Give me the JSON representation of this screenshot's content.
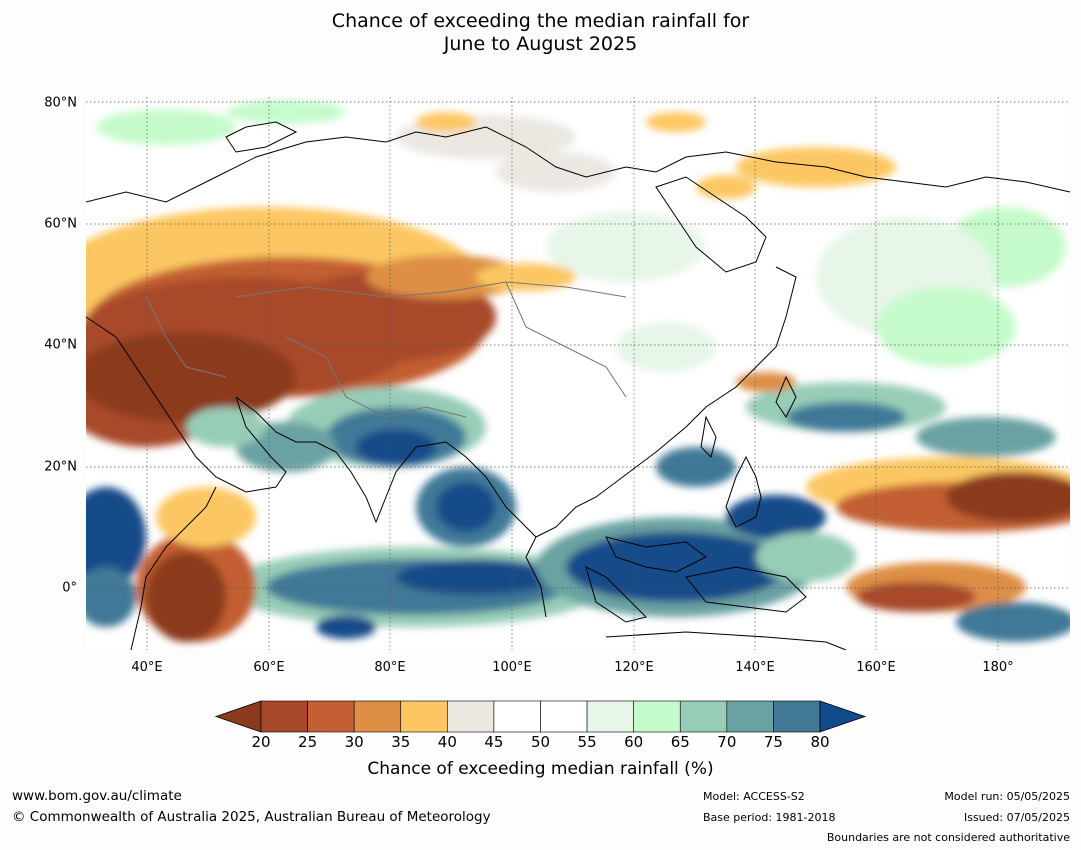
{
  "title": {
    "line1": "Chance of exceeding the median rainfall for",
    "line2": "June to August 2025"
  },
  "map": {
    "lat_ticks": [
      "80°N",
      "60°N",
      "40°N",
      "20°N",
      "0°"
    ],
    "lon_ticks": [
      "40°E",
      "60°E",
      "80°E",
      "100°E",
      "120°E",
      "140°E",
      "160°E",
      "180°"
    ]
  },
  "colorbar": {
    "ticks": [
      "20",
      "25",
      "30",
      "35",
      "40",
      "45",
      "50",
      "55",
      "60",
      "65",
      "70",
      "75",
      "80"
    ],
    "colors": [
      "#8b3a1e",
      "#a8482a",
      "#c35f32",
      "#de8f45",
      "#fcc762",
      "#ebe8e2",
      "#ffffff",
      "#ffffff",
      "#e7f6e8",
      "#c5fbcb",
      "#97cdb7",
      "#6aa2a3",
      "#417997",
      "#124b89"
    ],
    "label": "Chance of exceeding median rainfall (%)"
  },
  "footer": {
    "url": "www.bom.gov.au/climate",
    "copyright": "© Commonwealth of Australia 2025, Australian Bureau of Meteorology",
    "model": "Model: ACCESS-S2",
    "base_period": "Base period: 1981-2018",
    "model_run": "Model run: 05/05/2025",
    "issued": "Issued: 07/05/2025",
    "disclaimer": "Boundaries are not considered authoritative"
  }
}
